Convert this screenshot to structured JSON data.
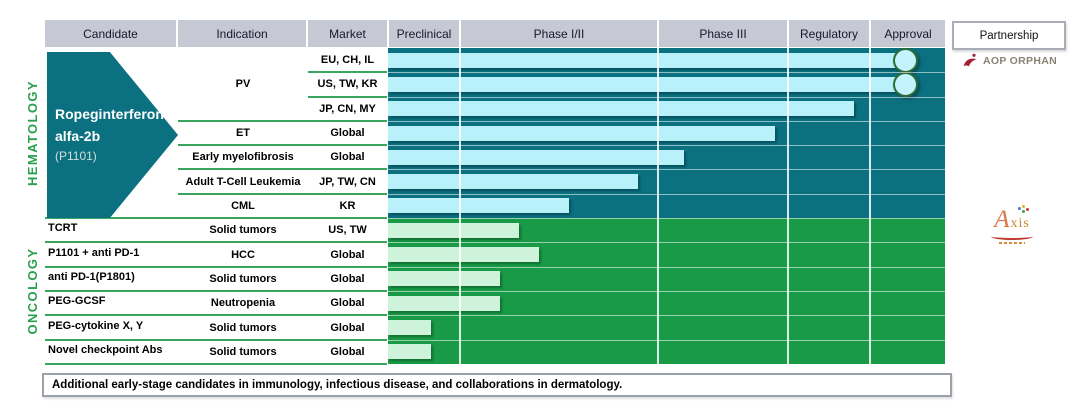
{
  "header": {
    "columns": [
      "Candidate",
      "Indication",
      "Market",
      "Preclinical",
      "Phase I/II",
      "Phase III",
      "Regulatory",
      "Approval"
    ],
    "partnership_label": "Partnership"
  },
  "partners": {
    "aop_orphan": "AOP ORPHAN",
    "axis": "Axis"
  },
  "footnote": "Additional early-stage candidates in immunology, infectious disease, and collaborations in dermatology.",
  "colors": {
    "hematology_bg": "#0B7080",
    "hematology_bar": "#B9F1FB",
    "oncology_bg": "#189A46",
    "oncology_bar": "#CDF3DA",
    "header_bg": "#C6C9D4",
    "section_green": "#28A04E",
    "separator_green": "#3AA55C",
    "approval_dot_fill": "#C3F4FD",
    "approval_dot_border": "#2C6C38",
    "aop_red": "#A31F34",
    "aop_gray": "#8B8273",
    "axis_orange": "#D97843"
  },
  "chart_data": {
    "type": "bar",
    "orientation": "horizontal",
    "stage_axis": [
      "Preclinical",
      "Phase I/II",
      "Phase III",
      "Regulatory",
      "Approval"
    ],
    "progress_scale": "0-5, integers are stage boundaries (1 = end of Preclinical, 2 = end of Phase I/II, 3 = end of Phase III, 4 = end of Regulatory, 5 = end of Approval)",
    "sections": [
      {
        "label": "HEMATOLOGY",
        "theme": {
          "bg": "#0B7080",
          "bar": "#B9F1FB"
        },
        "candidate_block": {
          "line1": "Ropeginterferon",
          "line2": "alfa-2b",
          "code": "(P1101)"
        },
        "partner": "AOP ORPHAN",
        "rows": [
          {
            "indication": "PV",
            "market": "EU, CH, IL",
            "progress": 4.45,
            "approved": true
          },
          {
            "market": "US, TW, KR",
            "progress": 4.45,
            "approved": true
          },
          {
            "market": "JP, CN, MY",
            "progress": 3.8
          },
          {
            "indication": "ET",
            "market": "Global",
            "progress": 2.9
          },
          {
            "indication": "Early myelofibrosis",
            "market": "Global",
            "progress": 2.2
          },
          {
            "indication": "Adult T-Cell Leukemia",
            "market": "JP, TW, CN",
            "progress": 1.9
          },
          {
            "indication": "CML",
            "market": "KR",
            "progress": 1.55
          }
        ]
      },
      {
        "label": "ONCOLOGY",
        "theme": {
          "bg": "#189A46",
          "bar": "#CDF3DA"
        },
        "partner": "Axis",
        "rows": [
          {
            "candidate": "TCRT",
            "indication": "Solid tumors",
            "market": "US, TW",
            "progress": 1.3
          },
          {
            "candidate": "P1101 + anti PD-1",
            "indication": "HCC",
            "market": "Global",
            "progress": 1.4
          },
          {
            "candidate": "anti PD-1(P1801)",
            "indication": "Solid tumors",
            "market": "Global",
            "progress": 1.2
          },
          {
            "candidate": "PEG-GCSF",
            "indication": "Neutropenia",
            "market": "Global",
            "progress": 1.2
          },
          {
            "candidate": "PEG-cytokine X, Y",
            "indication": "Solid tumors",
            "market": "Global",
            "progress": 0.6
          },
          {
            "candidate": "Novel checkpoint Abs",
            "indication": "Solid tumors",
            "market": "Global",
            "progress": 0.6
          }
        ]
      }
    ]
  }
}
